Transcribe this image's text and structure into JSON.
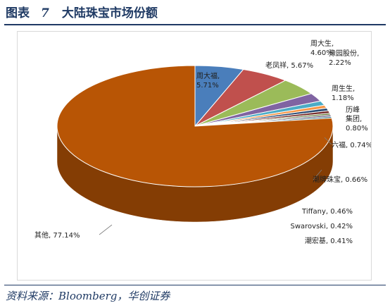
{
  "figure": {
    "label": "图表",
    "number": "7",
    "title": "大陆珠宝市场份额",
    "source": "资料来源：Bloomberg，华创证券"
  },
  "chart_data": {
    "type": "pie",
    "title": "",
    "slices": [
      {
        "name": "周大福",
        "value": 5.71,
        "label": "周大福,\n5.71%",
        "color": "#4a7ebb"
      },
      {
        "name": "老凤祥",
        "value": 5.67,
        "label": "老凤祥, 5.67%",
        "color": "#c0504d"
      },
      {
        "name": "周大生",
        "value": 4.6,
        "label": "周大生,\n4.60%",
        "color": "#9bbb59"
      },
      {
        "name": "豫园股份",
        "value": 2.22,
        "label": "豫园股份,\n2.22%",
        "color": "#8064a2"
      },
      {
        "name": "周生生",
        "value": 1.18,
        "label": "周生生,\n1.18%",
        "color": "#4bacc6"
      },
      {
        "name": "历峰集团",
        "value": 0.8,
        "label": "历峰\n集团,\n0.80%",
        "color": "#f79646"
      },
      {
        "name": "六福",
        "value": 0.74,
        "label": "六福, 0.74%",
        "color": "#2c4d75"
      },
      {
        "name": "潮牌珠宝",
        "value": 0.66,
        "label": "潮牌珠宝, 0.66%",
        "color": "#772c2a"
      },
      {
        "name": "Tiffany",
        "value": 0.46,
        "label": "Tiffany, 0.46%",
        "color": "#5f7530"
      },
      {
        "name": "Swarovski",
        "value": 0.42,
        "label": "Swarovski, 0.42%",
        "color": "#4d3b62"
      },
      {
        "name": "潮宏基",
        "value": 0.41,
        "label": "潮宏基, 0.41%",
        "color": "#276a7c"
      },
      {
        "name": "其他",
        "value": 77.14,
        "label": "其他, 77.14%",
        "color": "#b85505"
      }
    ]
  }
}
